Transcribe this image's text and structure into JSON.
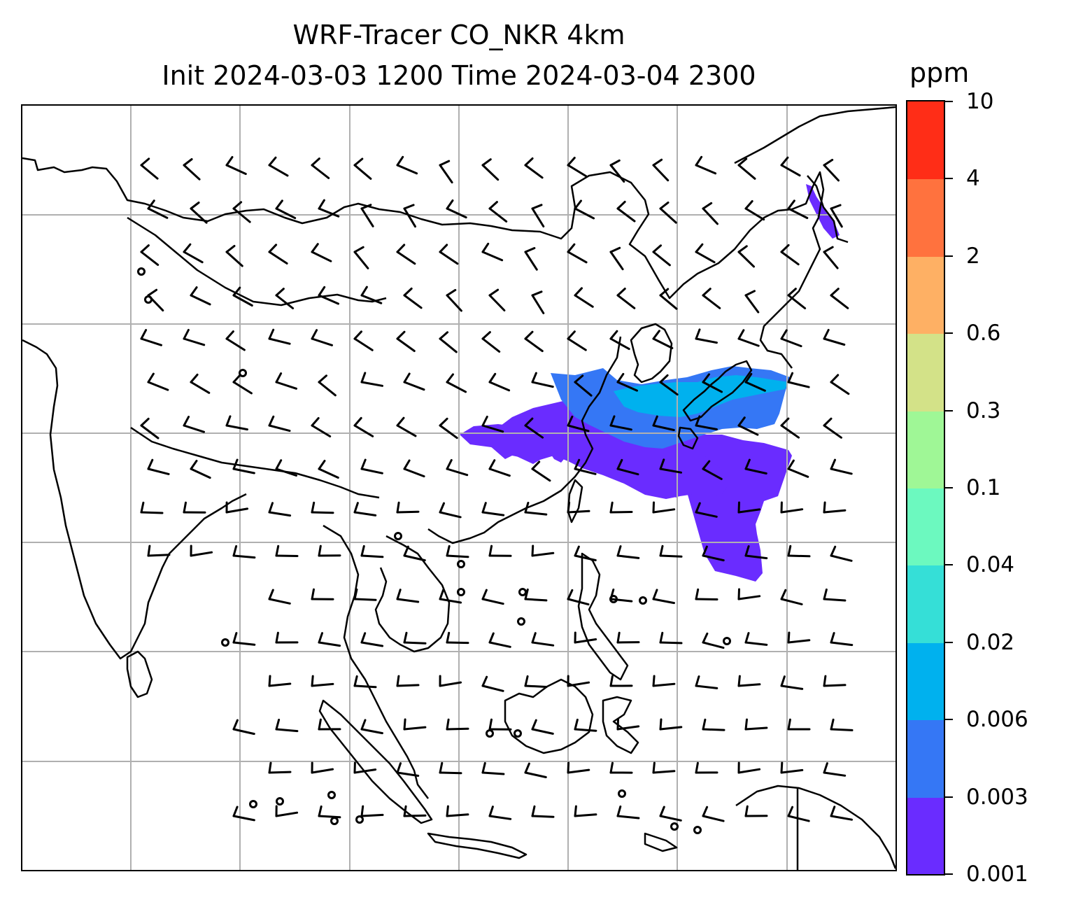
{
  "title": {
    "line1": "WRF-Tracer CO_NKR 4km",
    "line2": "Init 2024-03-03 1200 Time 2024-03-04 2300"
  },
  "colorbar": {
    "unit": "ppm",
    "levels": [
      "0.001",
      "0.003",
      "0.006",
      "0.02",
      "0.04",
      "0.1",
      "0.3",
      "0.6",
      "2",
      "4",
      "10"
    ],
    "colors": [
      "#6a2cff",
      "#3577f5",
      "#00b1ee",
      "#35dfd7",
      "#6cf9bf",
      "#9ff796",
      "#d3e288",
      "#feb064",
      "#ff723e",
      "#ff2d17"
    ]
  },
  "map": {
    "gridlines": true,
    "coastline_color": "#000000",
    "grid_color": "#b0b0b0",
    "plume_colors": {
      "outer": "#6a2cff",
      "inner": "#3577f5",
      "core": "#00b1ee"
    }
  }
}
